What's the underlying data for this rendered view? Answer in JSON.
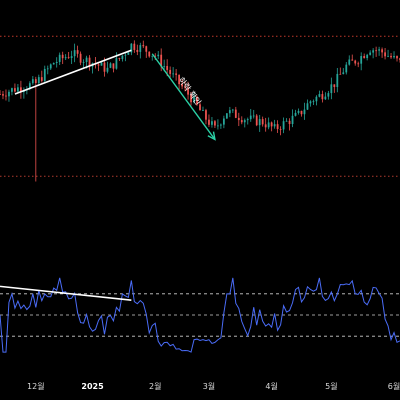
{
  "chart_data": {
    "type": "candlestick",
    "title": "",
    "colors": {
      "background": "#000000",
      "up": "#26a69a",
      "down": "#ef5350",
      "rsi_line": "#4a6cf7",
      "trendline": "#ffffff",
      "arrow": "#2bd1a6",
      "resistance_line": "#c0392b",
      "support_line": "#b03a2e",
      "rsi_bands": "#d0d0d0"
    },
    "x_axis": {
      "ticks": [
        {
          "label": "12월",
          "index": 12
        },
        {
          "label": "2025",
          "index": 31,
          "bold": true
        },
        {
          "label": "2월",
          "index": 52
        },
        {
          "label": "3월",
          "index": 70
        },
        {
          "label": "4월",
          "index": 91
        },
        {
          "label": "5월",
          "index": 111
        },
        {
          "label": "6월",
          "index": 132
        }
      ],
      "range": [
        0,
        134
      ]
    },
    "price_panel": {
      "ylim": [
        0,
        100
      ],
      "resistance_level": 85,
      "support_level": 5,
      "candles": [],
      "wick_outlier": {
        "index": 12,
        "low": 2
      },
      "annotation": {
        "text": "하락 확인"
      },
      "trendline": {
        "from": [
          5,
          52
        ],
        "to": [
          44,
          77
        ]
      },
      "arrow": {
        "from": [
          51,
          75
        ],
        "to": [
          72,
          26
        ]
      }
    },
    "rsi_panel": {
      "ylim": [
        0,
        100
      ],
      "bands": [
        70,
        50,
        30
      ],
      "trendline": {
        "from": [
          0,
          77
        ],
        "to": [
          44,
          64
        ]
      }
    },
    "seed": 7
  }
}
